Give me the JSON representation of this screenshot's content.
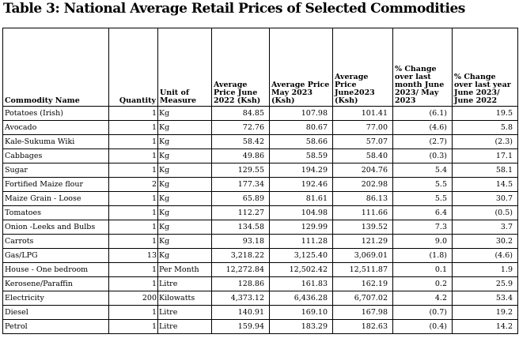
{
  "title": "Table 3: National Average Retail Prices of Selected Commodities",
  "headers": {
    "commodity": "Commodity Name",
    "quantity": "Quantity",
    "unit": "Unit of Measure",
    "price_2022": "Average Price June 2022 (Ksh)",
    "price_may2023": "Average Price May 2023 (Ksh)",
    "price_june2023": "Average Price June2023 (Ksh)",
    "pct_month": "% Change over last month June 2023/ May 2023",
    "pct_year": "% Change over last year June 2023/ June 2022"
  },
  "rows": [
    {
      "name": "Potatoes (Irish)",
      "qty": "1",
      "unit": "Kg",
      "p2022": "84.85",
      "pmay": "107.98",
      "pjun": "101.41",
      "cm": "(6.1)",
      "cy": "19.5"
    },
    {
      "name": "Avocado",
      "qty": "1",
      "unit": "Kg",
      "p2022": "72.76",
      "pmay": "80.67",
      "pjun": "77.00",
      "cm": "(4.6)",
      "cy": "5.8"
    },
    {
      "name": "Kale-Sukuma Wiki",
      "qty": "1",
      "unit": "Kg",
      "p2022": "58.42",
      "pmay": "58.66",
      "pjun": "57.07",
      "cm": "(2.7)",
      "cy": "(2.3)"
    },
    {
      "name": "Cabbages",
      "qty": "1",
      "unit": "Kg",
      "p2022": "49.86",
      "pmay": "58.59",
      "pjun": "58.40",
      "cm": "(0.3)",
      "cy": "17.1"
    },
    {
      "name": "Sugar",
      "qty": "1",
      "unit": "Kg",
      "p2022": "129.55",
      "pmay": "194.29",
      "pjun": "204.76",
      "cm": "5.4",
      "cy": "58.1"
    },
    {
      "name": "Fortified Maize flour",
      "qty": "2",
      "unit": "Kg",
      "p2022": "177.34",
      "pmay": "192.46",
      "pjun": "202.98",
      "cm": "5.5",
      "cy": "14.5"
    },
    {
      "name": "Maize Grain - Loose",
      "qty": "1",
      "unit": "Kg",
      "p2022": "65.89",
      "pmay": "81.61",
      "pjun": "86.13",
      "cm": "5.5",
      "cy": "30.7"
    },
    {
      "name": "Tomatoes",
      "qty": "1",
      "unit": "Kg",
      "p2022": "112.27",
      "pmay": "104.98",
      "pjun": "111.66",
      "cm": "6.4",
      "cy": "(0.5)"
    },
    {
      "name": "Onion -Leeks and Bulbs",
      "qty": "1",
      "unit": "Kg",
      "p2022": "134.58",
      "pmay": "129.99",
      "pjun": "139.52",
      "cm": "7.3",
      "cy": "3.7"
    },
    {
      "name": "Carrots",
      "qty": "1",
      "unit": "Kg",
      "p2022": "93.18",
      "pmay": "111.28",
      "pjun": "121.29",
      "cm": "9.0",
      "cy": "30.2"
    },
    {
      "name": "Gas/LPG",
      "qty": "13",
      "unit": "Kg",
      "p2022": "3,218.22",
      "pmay": "3,125.40",
      "pjun": "3,069.01",
      "cm": "(1.8)",
      "cy": "(4.6)"
    },
    {
      "name": "House - One bedroom",
      "qty": "1",
      "unit": "Per Month",
      "p2022": "12,272.84",
      "pmay": "12,502.42",
      "pjun": "12,511.87",
      "cm": "0.1",
      "cy": "1.9"
    },
    {
      "name": "Kerosene/Paraffin",
      "qty": "1",
      "unit": "Litre",
      "p2022": "128.86",
      "pmay": "161.83",
      "pjun": "162.19",
      "cm": "0.2",
      "cy": "25.9"
    },
    {
      "name": "Electricity",
      "qty": "200",
      "unit": "Kilowatts",
      "p2022": "4,373.12",
      "pmay": "6,436.28",
      "pjun": "6,707.02",
      "cm": "4.2",
      "cy": "53.4"
    },
    {
      "name": "Diesel",
      "qty": "1",
      "unit": "Litre",
      "p2022": "140.91",
      "pmay": "169.10",
      "pjun": "167.98",
      "cm": "(0.7)",
      "cy": "19.2"
    },
    {
      "name": "Petrol",
      "qty": "1",
      "unit": "Litre",
      "p2022": "159.94",
      "pmay": "183.29",
      "pjun": "182.63",
      "cm": "(0.4)",
      "cy": "14.2"
    }
  ]
}
